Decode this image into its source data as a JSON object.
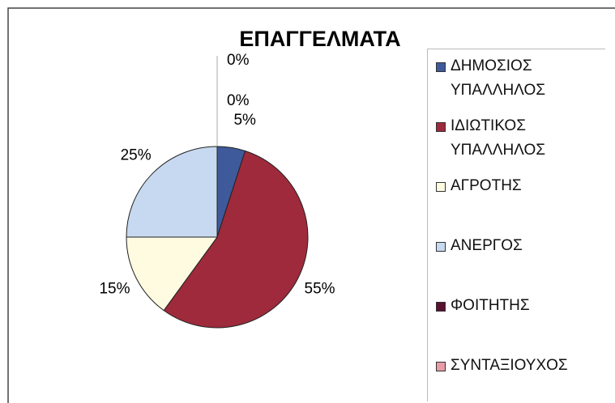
{
  "chart_data": {
    "type": "pie",
    "title": "ΕΠΑΓΓΕΛΜΑΤΑ",
    "categories": [
      "ΔΗΜΟΣΙΟΣ ΥΠΑΛΛΗΛΟΣ",
      "ΙΔΙΩΤΙΚΟΣ ΥΠΑΛΛΗΛΟΣ",
      "ΑΓΡΟΤΗΣ",
      "ΑΝΕΡΓΟΣ",
      "ΦΟΙΤΗΤΗΣ",
      "ΣΥΝΤΑΞΙΟΥΧΟΣ"
    ],
    "values": [
      5,
      55,
      15,
      25,
      0,
      0
    ],
    "value_labels": [
      "5%",
      "55%",
      "15%",
      "25%",
      "0%",
      "0%"
    ],
    "colors": [
      "#3f5a9a",
      "#9e2a3c",
      "#fffbe0",
      "#c6d9f0",
      "#5a1030",
      "#e79ca8"
    ],
    "legend": "right"
  }
}
